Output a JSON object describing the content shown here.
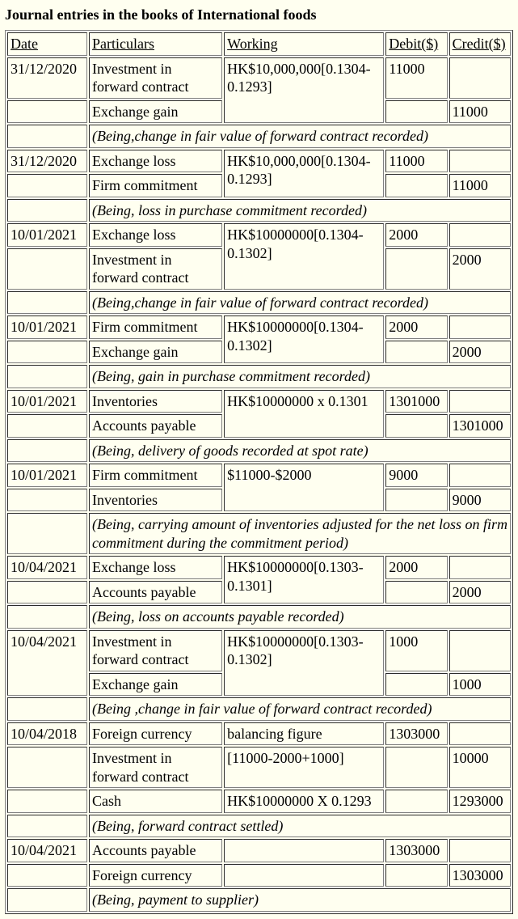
{
  "title": "Journal entries in the books of International foods",
  "headers": {
    "date": "Date",
    "particulars": "Particulars",
    "working": "Working",
    "debit": "Debit($)",
    "credit": "Credit($)"
  },
  "r": [
    {
      "date": "31/12/2020",
      "part": "Investment in forward contract",
      "work": "HK$10,000,000[0.1304-0.1293]",
      "debit": "11000",
      "credit": ""
    },
    {
      "date": "",
      "part": "Exchange gain",
      "work": "",
      "debit": "",
      "credit": "11000"
    },
    {
      "narration": "(Being,change in fair value of forward contract recorded)"
    },
    {
      "date": "31/12/2020",
      "part": "Exchange loss",
      "work": "HK$10,000,000[0.1304-0.1293]",
      "debit": "11000",
      "credit": ""
    },
    {
      "date": "",
      "part": "Firm commitment",
      "work": "",
      "debit": "",
      "credit": "11000"
    },
    {
      "narration": "(Being, loss in purchase commitment recorded)"
    },
    {
      "date": "10/01/2021",
      "part": "Exchange loss",
      "work": "HK$10000000[0.1304-0.1302]",
      "debit": "2000",
      "credit": ""
    },
    {
      "date": "",
      "part": "Investment in forward contract",
      "work": "",
      "debit": "",
      "credit": "2000"
    },
    {
      "narration": "(Being,change in fair value of forward contract recorded)"
    },
    {
      "date": "10/01/2021",
      "part": "Firm commitment",
      "work": "HK$10000000[0.1304-0.1302]",
      "debit": "2000",
      "credit": ""
    },
    {
      "date": "",
      "part": "Exchange gain",
      "work": "",
      "debit": "",
      "credit": "2000"
    },
    {
      "narration": "(Being, gain in purchase commitment recorded)"
    },
    {
      "date": "10/01/2021",
      "part": "Inventories",
      "work": "HK$10000000 x 0.1301",
      "debit": "1301000",
      "credit": ""
    },
    {
      "date": "",
      "part": "Accounts payable",
      "work": "",
      "debit": "",
      "credit": "1301000"
    },
    {
      "narration": "(Being, delivery of goods recorded at spot rate)"
    },
    {
      "date": "10/01/2021",
      "part": "Firm commitment",
      "work": "$11000-$2000",
      "debit": "9000",
      "credit": ""
    },
    {
      "date": "",
      "part": "Inventories",
      "work": "",
      "debit": "",
      "credit": "9000"
    },
    {
      "narration": "(Being, carrying amount of inventories adjusted for the net loss on firm commitment during the commitment period)"
    },
    {
      "date": "10/04/2021",
      "part": "Exchange loss",
      "work": "HK$10000000[0.1303-0.1301]",
      "debit": "2000",
      "credit": ""
    },
    {
      "date": "",
      "part": "Accounts payable",
      "work": "",
      "debit": "",
      "credit": "2000"
    },
    {
      "narration": "(Being, loss on accounts payable recorded)"
    },
    {
      "date": "10/04/2021",
      "part": "Investment in forward contract",
      "work": "HK$10000000[0.1303-0.1302]",
      "debit": "1000",
      "credit": ""
    },
    {
      "date": "",
      "part": "Exchange gain",
      "work": "",
      "debit": "",
      "credit": "1000"
    },
    {
      "narration": "(Being ,change in fair value of forward contract recorded)"
    },
    {
      "date": "10/04/2018",
      "part": "Foreign currency",
      "work": "balancing figure",
      "debit": "1303000",
      "credit": ""
    },
    {
      "date": "",
      "part": "Investment in forward contract",
      "work": "[11000-2000+1000]",
      "debit": "",
      "credit": "10000"
    },
    {
      "date": "",
      "part": "Cash",
      "work": "HK$10000000 X 0.1293",
      "debit": "",
      "credit": "1293000"
    },
    {
      "narration": "(Being, forward contract settled)"
    },
    {
      "date": "10/04/2021",
      "part": "Accounts payable",
      "work": "",
      "debit": "1303000",
      "credit": ""
    },
    {
      "date": "",
      "part": "Foreign currency",
      "work": "",
      "debit": "",
      "credit": "1303000"
    },
    {
      "narration": "(Being, payment to supplier)"
    }
  ],
  "rowspanGroups": [
    {
      "start": 0,
      "dateRows": 1,
      "workRows": 2
    },
    {
      "start": 3,
      "dateRows": 1,
      "workRows": 2
    },
    {
      "start": 6,
      "dateRows": 1,
      "workRows": 2
    },
    {
      "start": 9,
      "dateRows": 1,
      "workRows": 2
    },
    {
      "start": 12,
      "dateRows": 1,
      "workRows": 2
    },
    {
      "start": 15,
      "dateRows": 1,
      "workRows": 2
    },
    {
      "start": 18,
      "dateRows": 1,
      "workRows": 2
    },
    {
      "start": 21,
      "dateRows": 2,
      "workRows": 2
    }
  ],
  "style": {
    "background_color": "#fffff0",
    "text_color": "#000000",
    "border_color": "#808080",
    "font_family": "Times New Roman",
    "font_size_pt": 14
  }
}
